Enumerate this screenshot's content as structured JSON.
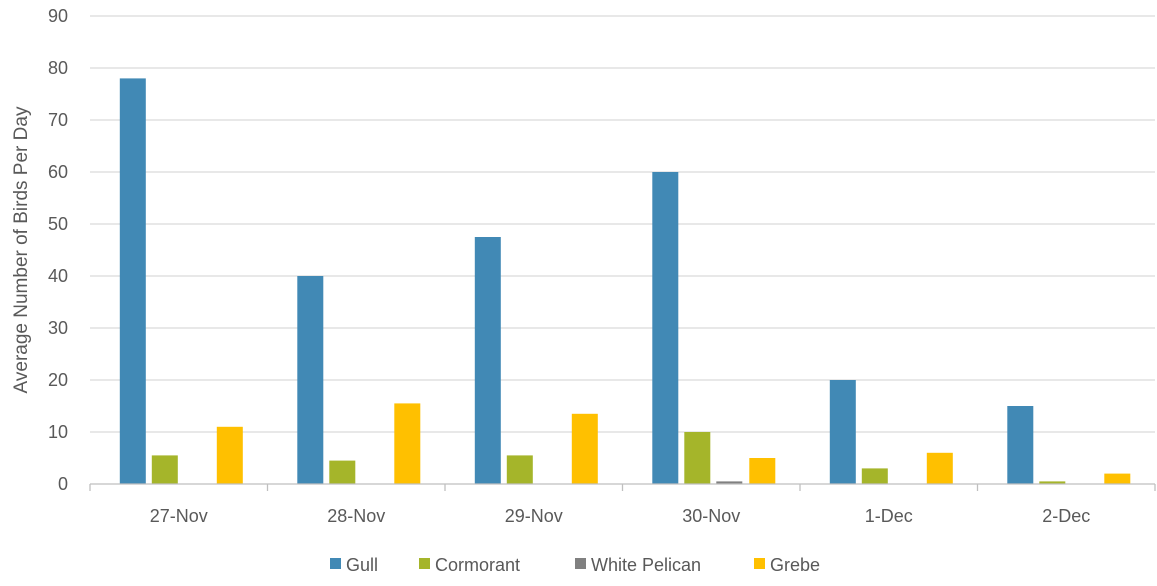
{
  "chart_data": {
    "type": "bar",
    "ylabel": "Average Number of Birds Per Day",
    "xlabel": "",
    "ylim": [
      0,
      90
    ],
    "yticks": [
      0,
      10,
      20,
      30,
      40,
      50,
      60,
      70,
      80,
      90
    ],
    "grid": true,
    "legend_position": "bottom",
    "categories": [
      "27-Nov",
      "28-Nov",
      "29-Nov",
      "30-Nov",
      "1-Dec",
      "2-Dec"
    ],
    "series": [
      {
        "name": "Gull",
        "color": "#4189b5",
        "values": [
          78,
          40,
          47.5,
          60,
          20,
          15
        ]
      },
      {
        "name": "Cormorant",
        "color": "#a5b52a",
        "values": [
          5.5,
          4.5,
          5.5,
          10,
          3,
          0.5
        ]
      },
      {
        "name": "White Pelican",
        "color": "#808080",
        "values": [
          0,
          0,
          0,
          0.5,
          0,
          0
        ]
      },
      {
        "name": "Grebe",
        "color": "#ffc000",
        "values": [
          11,
          15.5,
          13.5,
          5,
          6,
          2
        ]
      }
    ]
  }
}
